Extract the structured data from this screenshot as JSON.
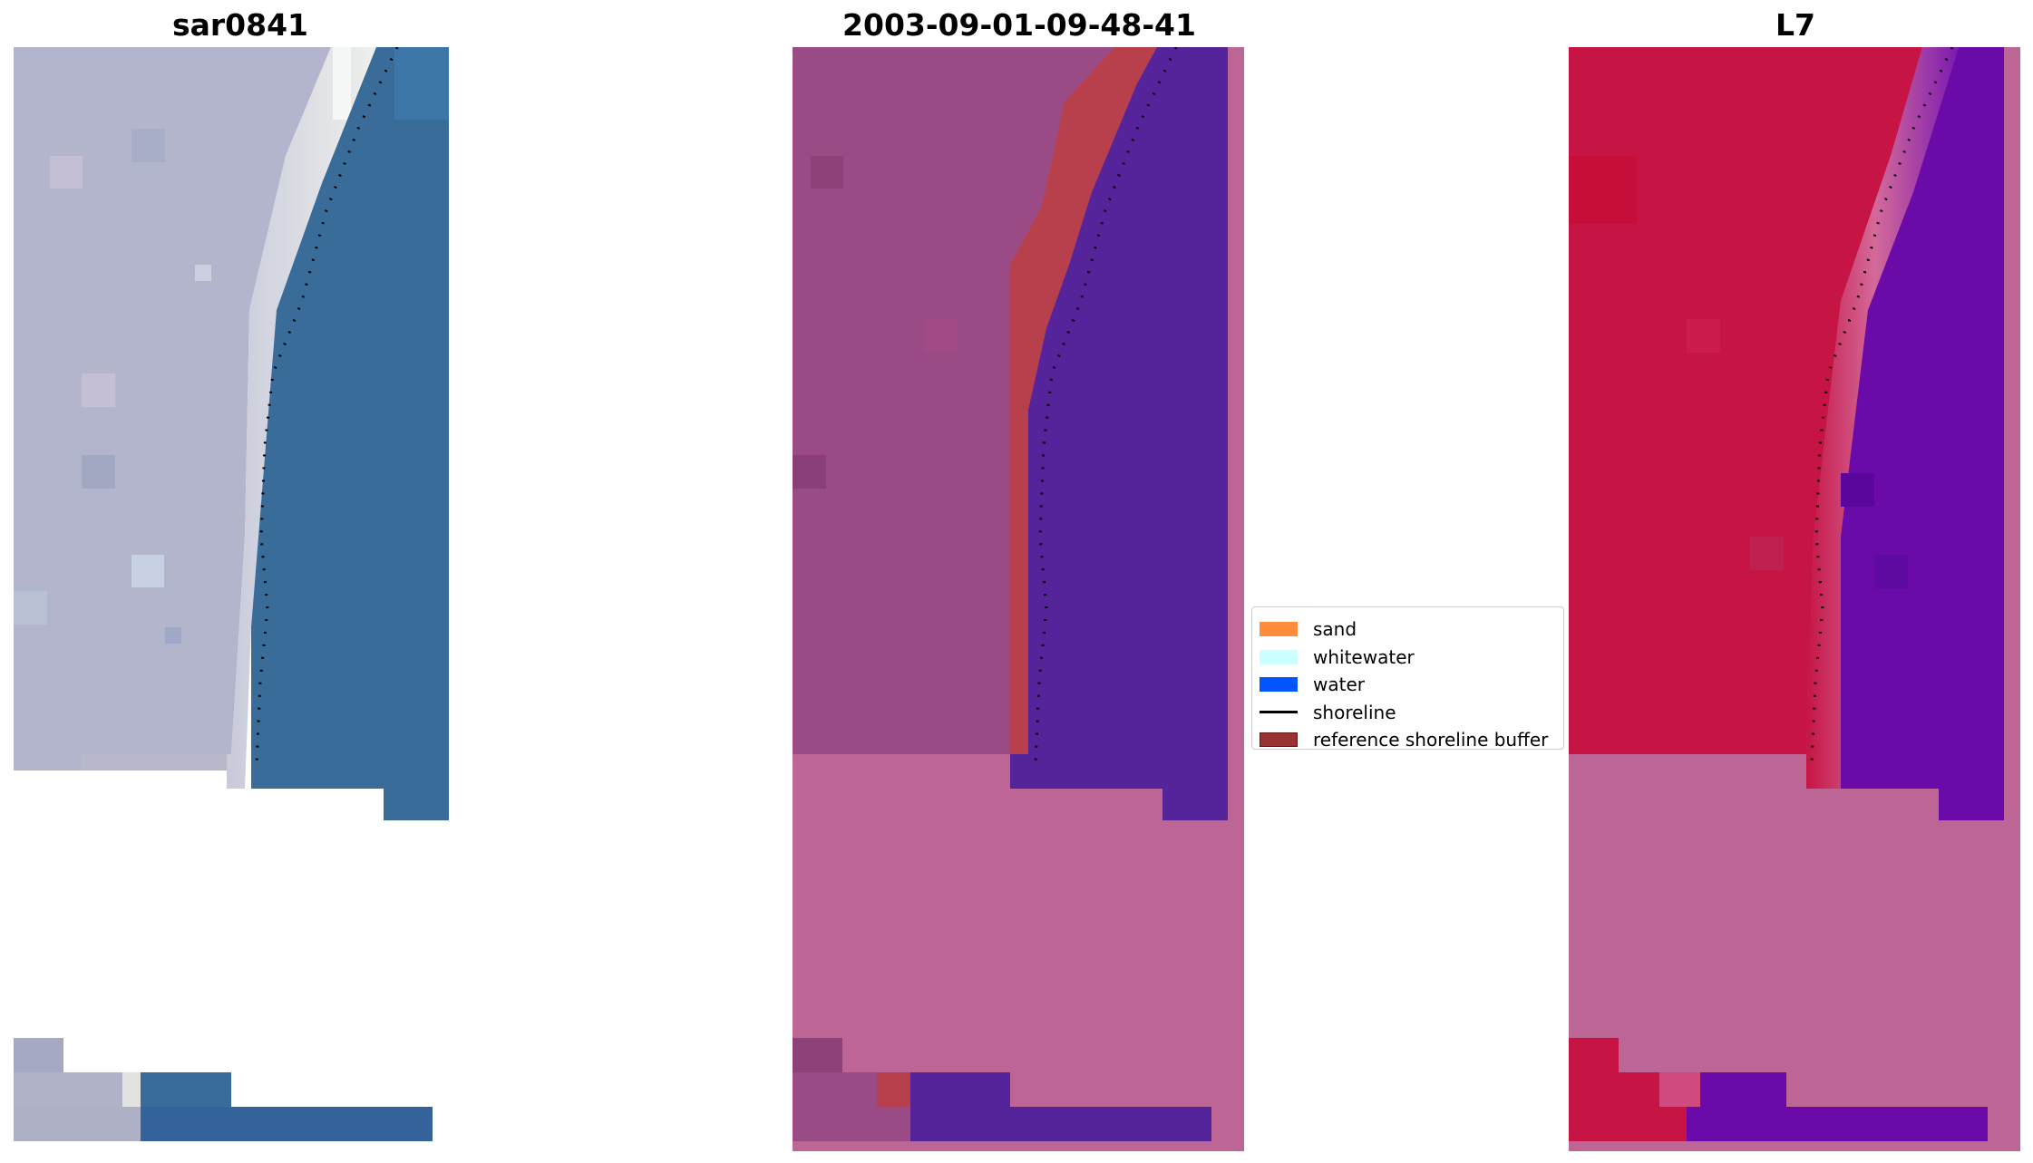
{
  "panels": [
    {
      "title": "sar0841"
    },
    {
      "title": "2003-09-01-09-48-41"
    },
    {
      "title": "L7"
    }
  ],
  "legend": {
    "items": [
      {
        "label": "sand",
        "color": "#ff8c3c",
        "kind": "patch"
      },
      {
        "label": "whitewater",
        "color": "#ccffff",
        "kind": "patch"
      },
      {
        "label": "water",
        "color": "#0055ff",
        "kind": "patch"
      },
      {
        "label": "shoreline",
        "color": "#000000",
        "kind": "line"
      },
      {
        "label": "reference shoreline buffer",
        "color": "#993333",
        "kind": "patch"
      }
    ]
  },
  "colors": {
    "rgb_land": "#b3b5cc",
    "rgb_beach": "#eef0ee",
    "rgb_water": "#3a6c9a",
    "classified_land": "#9a4a84",
    "classified_buffer": "#b8404c",
    "classified_water": "#55239a",
    "classified_nodata": "#bd6695",
    "false_color_land": "#c61444",
    "false_color_water": "#6a0aa8",
    "false_color_nodata": "#bd6695"
  }
}
